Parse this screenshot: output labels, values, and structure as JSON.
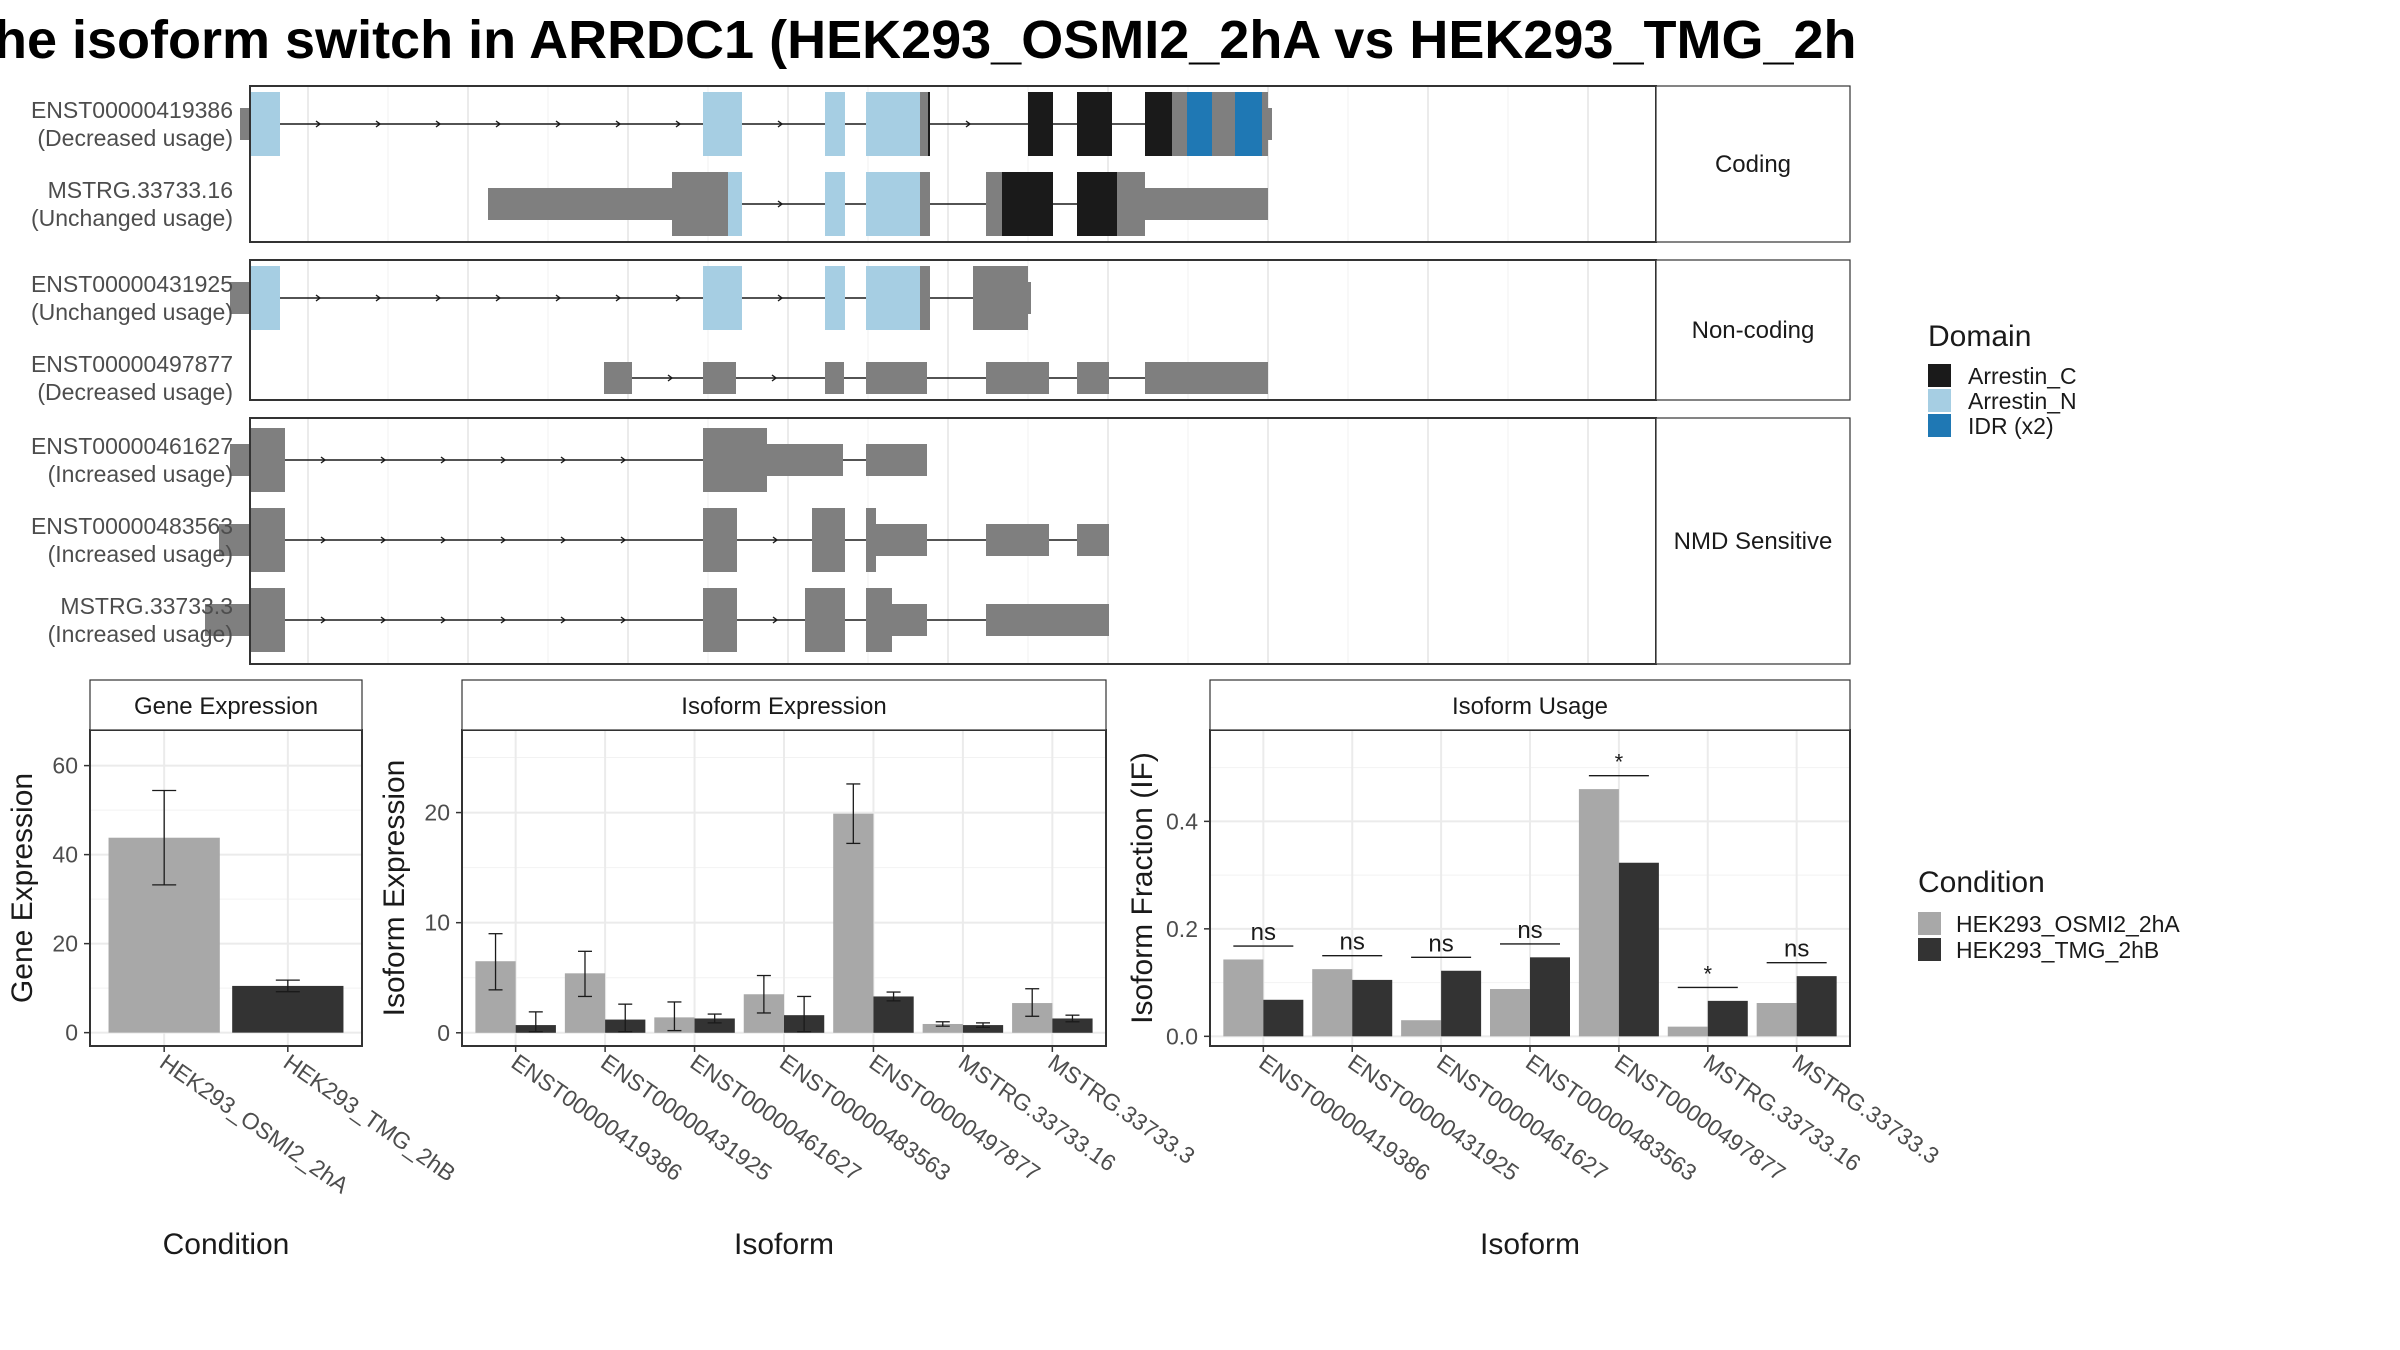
{
  "title": "he isoform switch in ARRDC1 (HEK293_OSMI2_2hA vs HEK293_TMG_2h",
  "structure": {
    "groups": [
      {
        "label": "Coding",
        "transcripts": [
          {
            "id": "ENST00000419386",
            "usage": "(Decreased usage)",
            "segments": [
              {
                "s": 240,
                "e": 250,
                "h": "med",
                "c": "grey"
              },
              {
                "s": 250,
                "e": 280,
                "h": "tall",
                "c": "lightblue"
              },
              {
                "s": 703,
                "e": 742,
                "h": "tall",
                "c": "lightblue"
              },
              {
                "s": 825,
                "e": 845,
                "h": "tall",
                "c": "lightblue"
              },
              {
                "s": 866,
                "e": 920,
                "h": "tall",
                "c": "lightblue"
              },
              {
                "s": 920,
                "e": 930,
                "h": "tall",
                "c": "grey"
              },
              {
                "s": 928,
                "e": 930,
                "h": "tall",
                "c": "black"
              },
              {
                "s": 1028,
                "e": 1053,
                "h": "tall",
                "c": "black"
              },
              {
                "s": 1077,
                "e": 1112,
                "h": "tall",
                "c": "black"
              },
              {
                "s": 1145,
                "e": 1172,
                "h": "tall",
                "c": "black"
              },
              {
                "s": 1172,
                "e": 1187,
                "h": "tall",
                "c": "grey"
              },
              {
                "s": 1187,
                "e": 1212,
                "h": "tall",
                "c": "blue"
              },
              {
                "s": 1212,
                "e": 1235,
                "h": "tall",
                "c": "grey"
              },
              {
                "s": 1235,
                "e": 1262,
                "h": "tall",
                "c": "blue"
              },
              {
                "s": 1262,
                "e": 1268,
                "h": "tall",
                "c": "grey"
              },
              {
                "s": 1268,
                "e": 1272,
                "h": "med",
                "c": "grey"
              }
            ],
            "intron": [
              280,
              1268
            ]
          },
          {
            "id": "MSTRG.33733.16",
            "usage": "(Unchanged usage)",
            "segments": [
              {
                "s": 488,
                "e": 672,
                "h": "med",
                "c": "grey"
              },
              {
                "s": 672,
                "e": 728,
                "h": "tall",
                "c": "grey"
              },
              {
                "s": 728,
                "e": 742,
                "h": "tall",
                "c": "lightblue"
              },
              {
                "s": 825,
                "e": 845,
                "h": "tall",
                "c": "lightblue"
              },
              {
                "s": 866,
                "e": 920,
                "h": "tall",
                "c": "lightblue"
              },
              {
                "s": 920,
                "e": 930,
                "h": "tall",
                "c": "grey"
              },
              {
                "s": 986,
                "e": 1002,
                "h": "tall",
                "c": "grey"
              },
              {
                "s": 1002,
                "e": 1053,
                "h": "tall",
                "c": "black"
              },
              {
                "s": 1077,
                "e": 1117,
                "h": "tall",
                "c": "black"
              },
              {
                "s": 1117,
                "e": 1145,
                "h": "tall",
                "c": "grey"
              },
              {
                "s": 1145,
                "e": 1268,
                "h": "med",
                "c": "grey"
              }
            ],
            "intron": [
              742,
              1268
            ]
          }
        ]
      },
      {
        "label": "Non-coding",
        "transcripts": [
          {
            "id": "ENST00000431925",
            "usage": "(Unchanged usage)",
            "segments": [
              {
                "s": 230,
                "e": 250,
                "h": "med",
                "c": "grey"
              },
              {
                "s": 250,
                "e": 280,
                "h": "tall",
                "c": "lightblue"
              },
              {
                "s": 703,
                "e": 742,
                "h": "tall",
                "c": "lightblue"
              },
              {
                "s": 825,
                "e": 845,
                "h": "tall",
                "c": "lightblue"
              },
              {
                "s": 866,
                "e": 920,
                "h": "tall",
                "c": "lightblue"
              },
              {
                "s": 920,
                "e": 930,
                "h": "tall",
                "c": "grey"
              },
              {
                "s": 973,
                "e": 1028,
                "h": "tall",
                "c": "grey"
              },
              {
                "s": 1028,
                "e": 1031,
                "h": "med",
                "c": "grey"
              }
            ],
            "intron": [
              280,
              973
            ]
          },
          {
            "id": "ENST00000497877",
            "usage": "(Decreased usage)",
            "segments": [
              {
                "s": 604,
                "e": 632,
                "h": "med",
                "c": "grey"
              },
              {
                "s": 703,
                "e": 736,
                "h": "med",
                "c": "grey"
              },
              {
                "s": 825,
                "e": 844,
                "h": "med",
                "c": "grey"
              },
              {
                "s": 866,
                "e": 927,
                "h": "med",
                "c": "grey"
              },
              {
                "s": 986,
                "e": 1049,
                "h": "med",
                "c": "grey"
              },
              {
                "s": 1077,
                "e": 1109,
                "h": "med",
                "c": "grey"
              },
              {
                "s": 1145,
                "e": 1268,
                "h": "med",
                "c": "grey"
              }
            ],
            "intron": [
              632,
              1145
            ]
          }
        ]
      },
      {
        "label": "NMD Sensitive",
        "transcripts": [
          {
            "id": "ENST00000461627",
            "usage": "(Increased usage)",
            "segments": [
              {
                "s": 230,
                "e": 250,
                "h": "med",
                "c": "grey"
              },
              {
                "s": 250,
                "e": 285,
                "h": "tall",
                "c": "grey"
              },
              {
                "s": 703,
                "e": 767,
                "h": "tall",
                "c": "grey"
              },
              {
                "s": 767,
                "e": 843,
                "h": "med",
                "c": "grey"
              },
              {
                "s": 866,
                "e": 927,
                "h": "med",
                "c": "grey"
              }
            ],
            "intron": [
              285,
              866
            ]
          },
          {
            "id": "ENST00000483563",
            "usage": "(Increased usage)",
            "segments": [
              {
                "s": 219,
                "e": 250,
                "h": "med",
                "c": "grey"
              },
              {
                "s": 250,
                "e": 285,
                "h": "tall",
                "c": "grey"
              },
              {
                "s": 703,
                "e": 737,
                "h": "tall",
                "c": "grey"
              },
              {
                "s": 812,
                "e": 845,
                "h": "tall",
                "c": "grey"
              },
              {
                "s": 866,
                "e": 876,
                "h": "tall",
                "c": "grey"
              },
              {
                "s": 876,
                "e": 927,
                "h": "med",
                "c": "grey"
              },
              {
                "s": 986,
                "e": 1049,
                "h": "med",
                "c": "grey"
              },
              {
                "s": 1077,
                "e": 1109,
                "h": "med",
                "c": "grey"
              }
            ],
            "intron": [
              285,
              1077
            ]
          },
          {
            "id": "MSTRG.33733.3",
            "usage": "(Increased usage)",
            "segments": [
              {
                "s": 205,
                "e": 250,
                "h": "med",
                "c": "grey"
              },
              {
                "s": 250,
                "e": 285,
                "h": "tall",
                "c": "grey"
              },
              {
                "s": 703,
                "e": 737,
                "h": "tall",
                "c": "grey"
              },
              {
                "s": 805,
                "e": 845,
                "h": "tall",
                "c": "grey"
              },
              {
                "s": 866,
                "e": 892,
                "h": "tall",
                "c": "grey"
              },
              {
                "s": 892,
                "e": 927,
                "h": "med",
                "c": "grey"
              },
              {
                "s": 986,
                "e": 1109,
                "h": "med",
                "c": "grey"
              }
            ],
            "intron": [
              285,
              986
            ]
          }
        ]
      }
    ]
  },
  "domain_legend": {
    "title": "Domain",
    "items": [
      {
        "label": "Arrestin_C",
        "color": "#1a1a1a"
      },
      {
        "label": "Arrestin_N",
        "color": "#a6cee3"
      },
      {
        "label": "IDR (x2)",
        "color": "#1f78b4"
      }
    ]
  },
  "colors": {
    "grey": "#7f7f7f",
    "black": "#1a1a1a",
    "lightblue": "#a6cee3",
    "blue": "#1f78b4",
    "osmi": "#a8a8a8",
    "tmg": "#333333"
  },
  "condition_legend": {
    "title": "Condition",
    "items": [
      {
        "label": "HEK293_OSMI2_2hA",
        "color": "#a8a8a8"
      },
      {
        "label": "HEK293_TMG_2hB",
        "color": "#333333"
      }
    ]
  },
  "chart_data": [
    {
      "type": "bar",
      "title": "Gene Expression",
      "xlabel": "Condition",
      "ylabel": "Gene Expression",
      "categories": [
        "HEK293_OSMI2_2hA",
        "HEK293_TMG_2hB"
      ],
      "values": [
        43.8,
        10.5
      ],
      "error_low": [
        33.2,
        9.2
      ],
      "error_high": [
        54.4,
        11.8
      ],
      "ylim": [
        -3,
        68
      ],
      "yticks": [
        0,
        20,
        40,
        60
      ]
    },
    {
      "type": "bar",
      "title": "Isoform Expression",
      "xlabel": "Isoform",
      "ylabel": "Isoform Expression",
      "categories": [
        "ENST00000419386",
        "ENST00000431925",
        "ENST00000461627",
        "ENST00000483563",
        "ENST00000497877",
        "MSTRG.33733.16",
        "MSTRG.33733.3"
      ],
      "series": [
        {
          "name": "HEK293_OSMI2_2hA",
          "values": [
            6.5,
            5.4,
            1.4,
            3.5,
            19.9,
            0.8,
            2.7
          ],
          "error_low": [
            3.9,
            3.3,
            0.2,
            1.8,
            17.2,
            0.6,
            1.5
          ],
          "error_high": [
            9.0,
            7.4,
            2.8,
            5.2,
            22.6,
            1.0,
            4.0
          ]
        },
        {
          "name": "HEK293_TMG_2hB",
          "values": [
            0.7,
            1.2,
            1.3,
            1.6,
            3.3,
            0.7,
            1.3
          ],
          "error_low": [
            0.1,
            0.1,
            0.9,
            0.1,
            2.9,
            0.5,
            1.0
          ],
          "error_high": [
            1.9,
            2.6,
            1.7,
            3.3,
            3.7,
            0.9,
            1.6
          ]
        }
      ],
      "ylim": [
        -1.2,
        27.5
      ],
      "yticks": [
        0,
        10,
        20
      ]
    },
    {
      "type": "bar",
      "title": "Isoform Usage",
      "xlabel": "Isoform",
      "ylabel": "Isoform Fraction (IF)",
      "categories": [
        "ENST00000419386",
        "ENST00000431925",
        "ENST00000461627",
        "ENST00000483563",
        "ENST00000497877",
        "MSTRG.33733.16",
        "MSTRG.33733.3"
      ],
      "series": [
        {
          "name": "HEK293_OSMI2_2hA",
          "values": [
            0.143,
            0.125,
            0.03,
            0.088,
            0.46,
            0.018,
            0.062
          ]
        },
        {
          "name": "HEK293_TMG_2hB",
          "values": [
            0.068,
            0.105,
            0.122,
            0.147,
            0.323,
            0.066,
            0.112
          ]
        }
      ],
      "significance": [
        "ns",
        "ns",
        "ns",
        "ns",
        "*",
        "*",
        "ns"
      ],
      "ylim": [
        -0.018,
        0.57
      ],
      "yticks": [
        0.0,
        0.2,
        0.4
      ],
      "ytick_labels": [
        "0.0",
        "0.2",
        "0.4"
      ]
    }
  ]
}
